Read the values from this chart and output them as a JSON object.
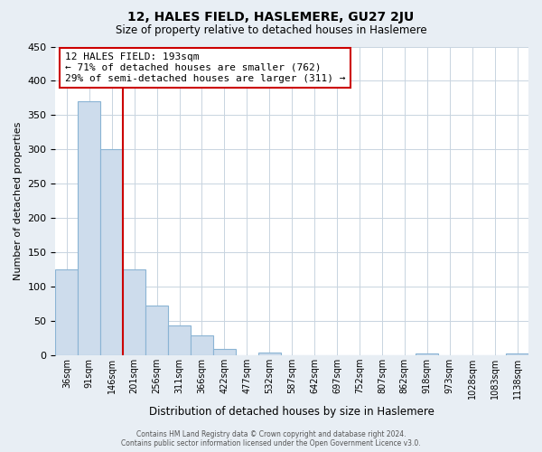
{
  "title": "12, HALES FIELD, HASLEMERE, GU27 2JU",
  "subtitle": "Size of property relative to detached houses in Haslemere",
  "xlabel": "Distribution of detached houses by size in Haslemere",
  "ylabel": "Number of detached properties",
  "bar_labels": [
    "36sqm",
    "91sqm",
    "146sqm",
    "201sqm",
    "256sqm",
    "311sqm",
    "366sqm",
    "422sqm",
    "477sqm",
    "532sqm",
    "587sqm",
    "642sqm",
    "697sqm",
    "752sqm",
    "807sqm",
    "862sqm",
    "918sqm",
    "973sqm",
    "1028sqm",
    "1083sqm",
    "1138sqm"
  ],
  "bar_values": [
    125,
    370,
    300,
    125,
    72,
    44,
    29,
    9,
    0,
    4,
    0,
    0,
    0,
    0,
    0,
    0,
    2,
    0,
    0,
    0,
    2
  ],
  "bar_color": "#cddcec",
  "bar_edge_color": "#8ab4d4",
  "ylim": [
    0,
    450
  ],
  "yticks": [
    0,
    50,
    100,
    150,
    200,
    250,
    300,
    350,
    400,
    450
  ],
  "property_line_color": "#cc0000",
  "annotation_title": "12 HALES FIELD: 193sqm",
  "annotation_line1": "← 71% of detached houses are smaller (762)",
  "annotation_line2": "29% of semi-detached houses are larger (311) →",
  "annotation_box_color": "#ffffff",
  "annotation_box_edge": "#cc0000",
  "footer_line1": "Contains HM Land Registry data © Crown copyright and database right 2024.",
  "footer_line2": "Contains public sector information licensed under the Open Government Licence v3.0.",
  "background_color": "#e8eef4",
  "plot_background": "#ffffff",
  "grid_color": "#c8d4e0"
}
